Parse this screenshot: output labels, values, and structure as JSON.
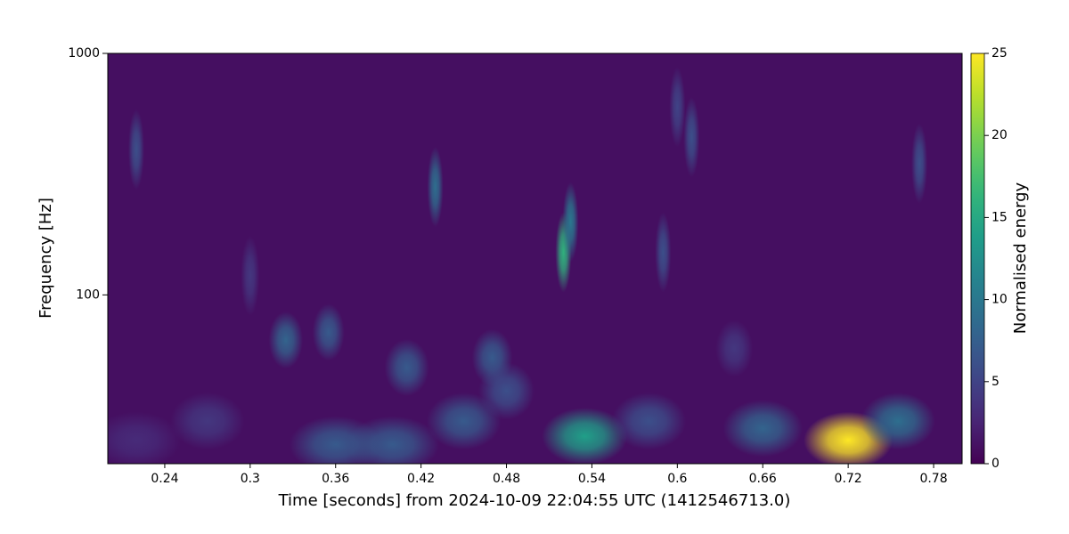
{
  "chart_data": {
    "type": "heatmap",
    "xlabel": "Time [seconds] from 2024-10-09 22:04:55 UTC (1412546713.0)",
    "ylabel": "Frequency [Hz]",
    "colorbar_label": "Normalised energy",
    "xlim": [
      0.2,
      0.8
    ],
    "xticks": [
      0.24,
      0.3,
      0.36,
      0.42,
      0.48,
      0.54,
      0.6,
      0.66,
      0.72,
      0.78
    ],
    "ylim": [
      20,
      1000
    ],
    "yticks": [
      100,
      1000
    ],
    "yscale": "log",
    "clim": [
      0,
      25
    ],
    "cticks": [
      0,
      5,
      10,
      15,
      20,
      25
    ],
    "colormap": "viridis",
    "x": [
      0.72,
      0.535,
      0.755,
      0.66,
      0.45,
      0.4,
      0.36,
      0.52,
      0.525,
      0.43,
      0.325,
      0.355,
      0.41,
      0.47,
      0.48,
      0.22,
      0.59,
      0.61,
      0.77,
      0.27,
      0.22,
      0.58,
      0.6,
      0.3,
      0.64
    ],
    "y": [
      25,
      26,
      30,
      28,
      30,
      24,
      24,
      150,
      200,
      280,
      65,
      70,
      50,
      55,
      40,
      400,
      150,
      450,
      350,
      30,
      25,
      30,
      600,
      120,
      60
    ],
    "values": [
      25,
      14,
      9,
      8,
      7,
      7,
      7,
      16,
      10,
      9,
      8,
      7,
      7,
      7,
      6,
      6,
      6,
      6,
      6,
      4,
      3,
      6,
      5,
      4,
      4
    ]
  }
}
